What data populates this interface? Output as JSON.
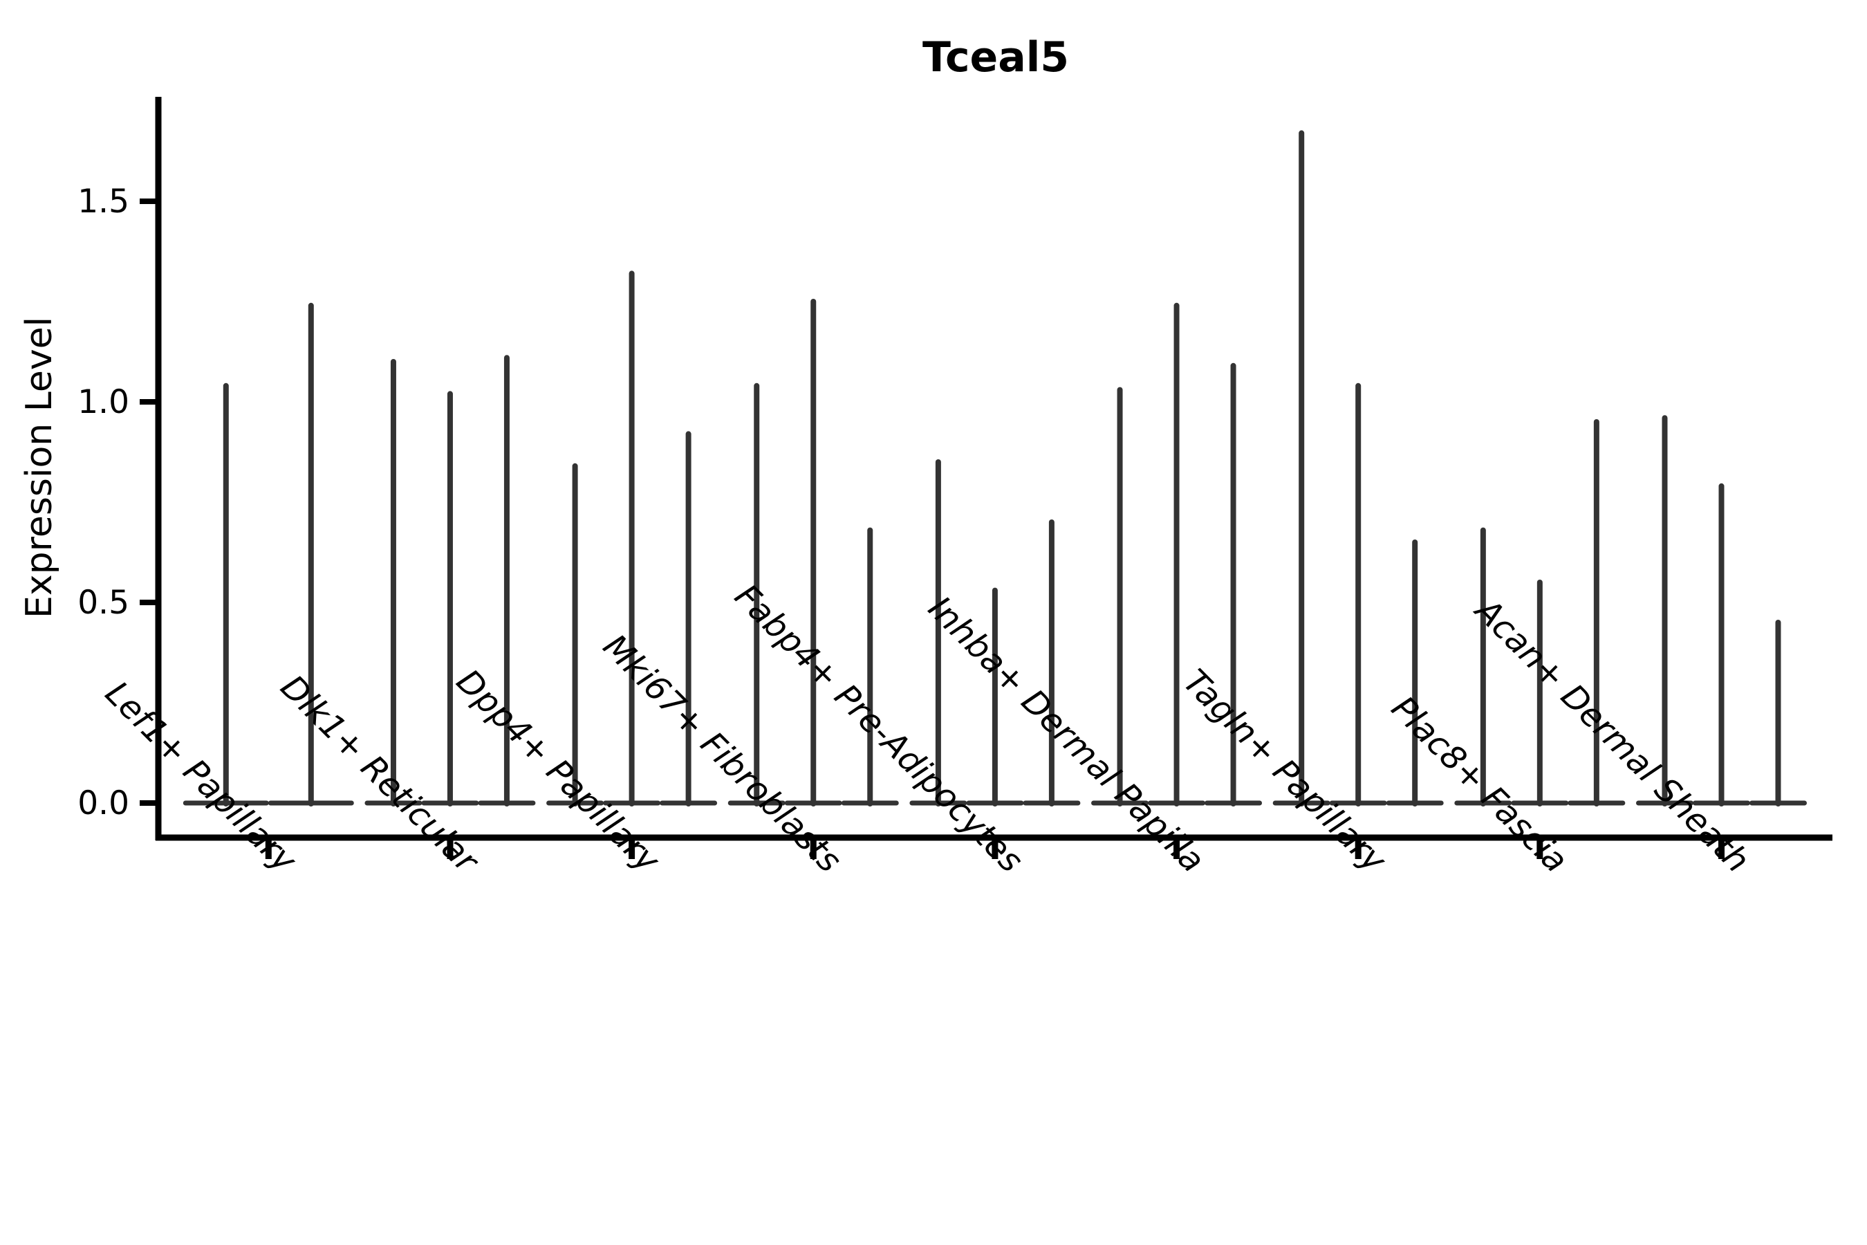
{
  "chart_data": {
    "type": "violin",
    "title": "Tceal5",
    "ylabel": "Expression Level",
    "xlabel": "",
    "yticks": [
      "0.0",
      "0.5",
      "1.0",
      "1.5"
    ],
    "ylim": [
      0,
      1.76
    ],
    "grid": "off",
    "legend": "none",
    "categories": [
      "Lef1+ Papillary",
      "Dlk1+ Reticular",
      "Dpp4+ Papillary",
      "Mki67+ Fibroblasts",
      "Fabp4+ Pre-Adipocytes",
      "Inhba+ Dermal Papilla",
      "Tagln+ Papillary",
      "Plac8+ Fascia",
      "Acan+ Dermal Sheath"
    ],
    "groups": [
      {
        "category": "Lef1+ Papillary",
        "violin_max_values": [
          1.04,
          1.24
        ]
      },
      {
        "category": "Dlk1+ Reticular",
        "violin_max_values": [
          1.1,
          1.02,
          1.11
        ]
      },
      {
        "category": "Dpp4+ Papillary",
        "violin_max_values": [
          0.84,
          1.32,
          0.92
        ]
      },
      {
        "category": "Mki67+ Fibroblasts",
        "violin_max_values": [
          1.04,
          1.25,
          0.68
        ]
      },
      {
        "category": "Fabp4+ Pre-Adipocytes",
        "violin_max_values": [
          0.85,
          0.53,
          0.7
        ]
      },
      {
        "category": "Inhba+ Dermal Papilla",
        "violin_max_values": [
          1.03,
          1.24,
          1.09
        ]
      },
      {
        "category": "Tagln+ Papillary",
        "violin_max_values": [
          1.67,
          1.04,
          0.65
        ]
      },
      {
        "category": "Plac8+ Fascia",
        "violin_max_values": [
          0.68,
          0.55,
          0.95
        ]
      },
      {
        "category": "Acan+ Dermal Sheath",
        "violin_max_values": [
          0.96,
          0.79,
          0.45
        ]
      }
    ],
    "violins_are_zero_inflated": "each violin is a flat base at 0 with a thin density spike up to its max value",
    "colors": {
      "violin_stroke": "#333333",
      "axis": "#000000",
      "text": "#000000",
      "background": "#ffffff"
    }
  }
}
